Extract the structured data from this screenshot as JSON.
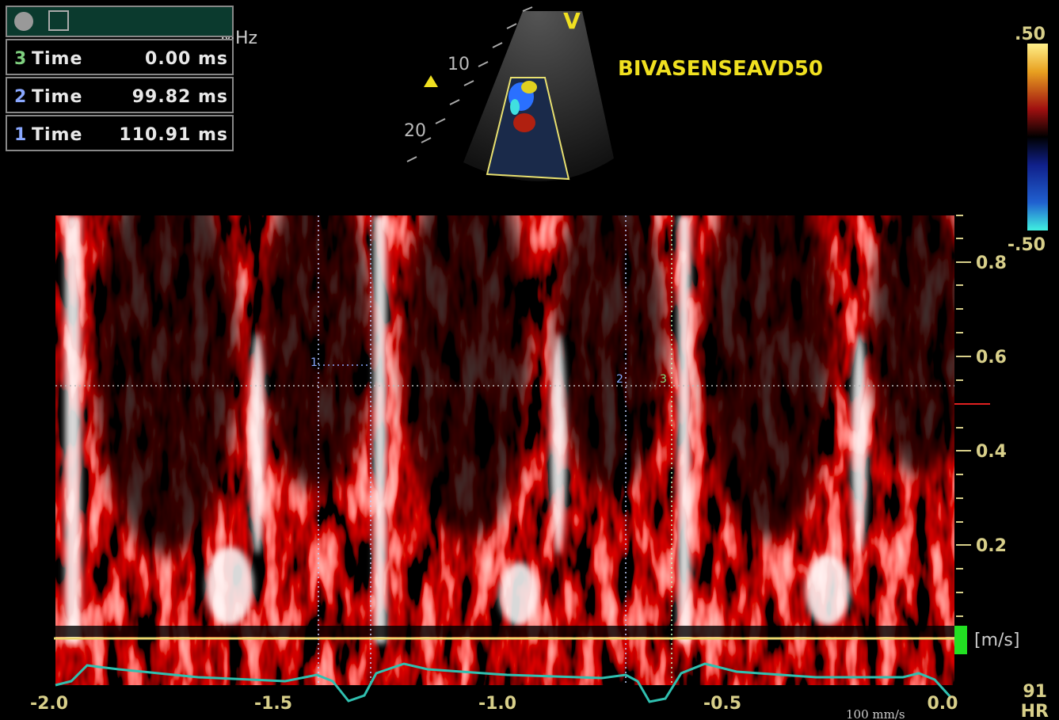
{
  "header": {
    "probe_freq": "MHz",
    "orientation": "V",
    "preset": "BIVASENSEAVD50"
  },
  "measurements": [
    {
      "index": "3",
      "label": "Time",
      "value": "0.00 ms"
    },
    {
      "index": "2",
      "label": "Time",
      "value": "99.82 ms"
    },
    {
      "index": "1",
      "label": "Time",
      "value": "110.91 ms"
    }
  ],
  "sector": {
    "depth_labels": [
      "10",
      "20"
    ]
  },
  "color_bar": {
    "top": ".50",
    "bottom": "-.50"
  },
  "velocity_axis": {
    "ticks": [
      "0.8",
      "0.6",
      "0.4",
      "0.2"
    ],
    "unit": "[m/s]"
  },
  "time_axis": {
    "ticks": [
      "-2.0",
      "-1.5",
      "-1.0",
      "-0.5",
      "0.0"
    ],
    "sweep": "100 mm/s"
  },
  "calipers": [
    "1",
    "2",
    "3"
  ],
  "heart_rate": {
    "value": "91",
    "label": "HR"
  }
}
